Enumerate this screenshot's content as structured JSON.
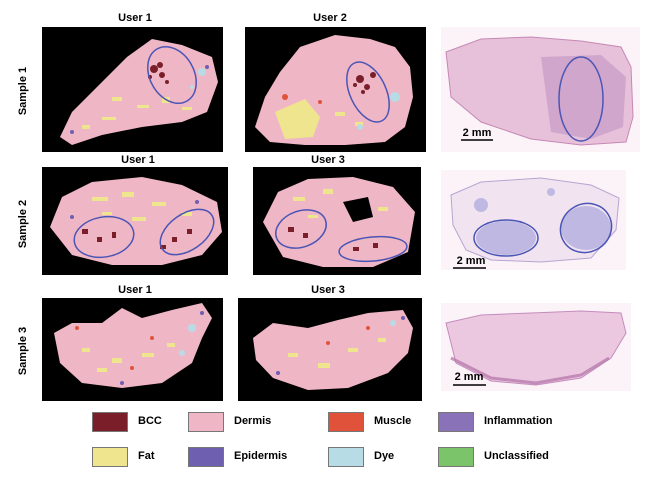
{
  "figure": {
    "columns": {
      "row1": [
        "User 1",
        "User 2"
      ],
      "row2": [
        "User 1",
        "User 3"
      ],
      "row3": [
        "User 1",
        "User 3"
      ]
    },
    "rows": [
      "Sample 1",
      "Sample 2",
      "Sample 3"
    ],
    "scale_bar_label": "2 mm"
  },
  "legend": [
    {
      "label": "BCC",
      "color": "#7a1f2a"
    },
    {
      "label": "Dermis",
      "color": "#efb6c6"
    },
    {
      "label": "Muscle",
      "color": "#e0533a"
    },
    {
      "label": "Inflammation",
      "color": "#8a72b8"
    },
    {
      "label": "Fat",
      "color": "#efe58f"
    },
    {
      "label": "Epidermis",
      "color": "#6f5fb0"
    },
    {
      "label": "Dye",
      "color": "#b8dce6"
    },
    {
      "label": "Unclassified",
      "color": "#7cc46a"
    }
  ],
  "colors": {
    "panel_background": "#000000",
    "tissue": "#efb6c6",
    "annotation_ellipse": "#4a55b5",
    "histology_stain": "#d9a3c9"
  }
}
